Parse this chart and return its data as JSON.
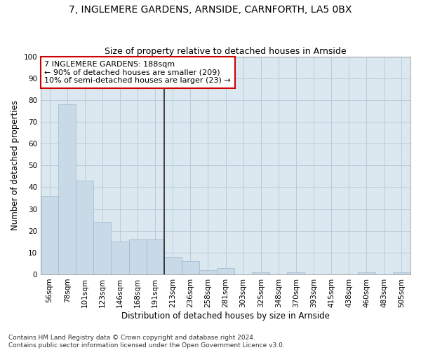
{
  "title1": "7, INGLEMERE GARDENS, ARNSIDE, CARNFORTH, LA5 0BX",
  "title2": "Size of property relative to detached houses in Arnside",
  "xlabel": "Distribution of detached houses by size in Arnside",
  "ylabel": "Number of detached properties",
  "categories": [
    "56sqm",
    "78sqm",
    "101sqm",
    "123sqm",
    "146sqm",
    "168sqm",
    "191sqm",
    "213sqm",
    "236sqm",
    "258sqm",
    "281sqm",
    "303sqm",
    "325sqm",
    "348sqm",
    "370sqm",
    "393sqm",
    "415sqm",
    "438sqm",
    "460sqm",
    "483sqm",
    "505sqm"
  ],
  "values": [
    36,
    78,
    43,
    24,
    15,
    16,
    16,
    8,
    6,
    2,
    3,
    0,
    1,
    0,
    1,
    0,
    0,
    0,
    1,
    0,
    1
  ],
  "bar_color": "#c8d9e8",
  "bar_edge_color": "#a0b8cc",
  "vline_index": 6,
  "vline_color": "#222222",
  "annotation_text": "7 INGLEMERE GARDENS: 188sqm\n← 90% of detached houses are smaller (209)\n10% of semi-detached houses are larger (23) →",
  "annotation_box_facecolor": "#ffffff",
  "annotation_box_edgecolor": "#cc0000",
  "ylim": [
    0,
    100
  ],
  "yticks": [
    0,
    10,
    20,
    30,
    40,
    50,
    60,
    70,
    80,
    90,
    100
  ],
  "grid_color": "#b8ccdc",
  "background_color": "#dce8f0",
  "footnote": "Contains HM Land Registry data © Crown copyright and database right 2024.\nContains public sector information licensed under the Open Government Licence v3.0.",
  "title1_fontsize": 10,
  "title2_fontsize": 9,
  "xlabel_fontsize": 8.5,
  "ylabel_fontsize": 8.5,
  "tick_fontsize": 7.5,
  "annotation_fontsize": 8,
  "footnote_fontsize": 6.5
}
